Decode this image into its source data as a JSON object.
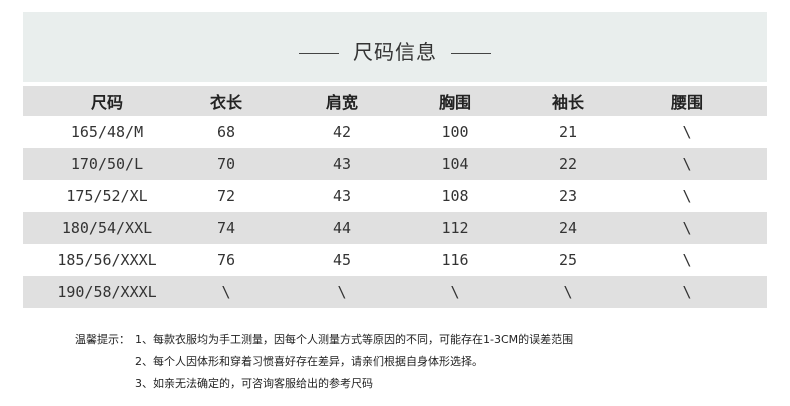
{
  "title": "尺码信息",
  "table": {
    "headers": [
      "尺码",
      "衣长",
      "肩宽",
      "胸围",
      "袖长",
      "腰围"
    ],
    "rows": [
      [
        "165/48/M",
        "68",
        "42",
        "100",
        "21",
        "\\"
      ],
      [
        "170/50/L",
        "70",
        "43",
        "104",
        "22",
        "\\"
      ],
      [
        "175/52/XL",
        "72",
        "43",
        "108",
        "23",
        "\\"
      ],
      [
        "180/54/XXL",
        "74",
        "44",
        "112",
        "24",
        "\\"
      ],
      [
        "185/56/XXXL",
        "76",
        "45",
        "116",
        "25",
        "\\"
      ],
      [
        "190/58/XXXL",
        "\\",
        "\\",
        "\\",
        "\\",
        "\\"
      ]
    ]
  },
  "notes": {
    "label": "温馨提示：",
    "items": [
      "1、每款衣服均为手工测量，因每个人测量方式等原因的不同，可能存在1-3CM的误差范围",
      "2、每个人因体形和穿着习惯喜好存在差异，请亲们根据自身体形选择。",
      "3、如亲无法确定的，可咨询客服给出的参考尺码"
    ]
  }
}
